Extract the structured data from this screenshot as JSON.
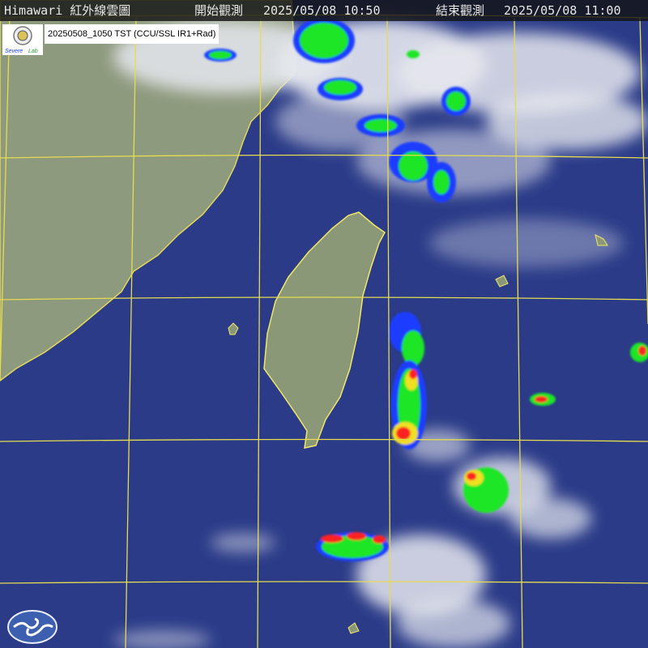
{
  "header": {
    "title": "Himawari 紅外線雲圖",
    "start_label": "開始觀測",
    "start_time": "2025/05/08 10:50",
    "end_label": "結束觀測",
    "end_time": "2025/05/08 11:00"
  },
  "product_label": "20250508_1050 TST (CCU/SSL IR1+Rad)",
  "logos": {
    "lab_logo_text": "Severe Storm Lab"
  },
  "colors": {
    "ocean": "#2a3a86",
    "land": "#8e9a7e",
    "graticule": "#e6dc50",
    "coastline": "#f0e868",
    "radar_low": "#1a3cff",
    "radar_mid": "#1ee628",
    "radar_high": "#ff2020"
  }
}
